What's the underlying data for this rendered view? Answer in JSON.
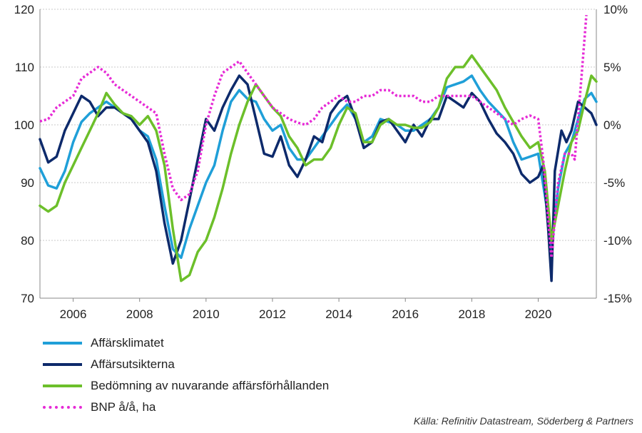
{
  "chart_data": {
    "type": "line",
    "xlim": [
      2005.0,
      2021.75
    ],
    "x_ticks": [
      "2006",
      "2008",
      "2010",
      "2012",
      "2014",
      "2016",
      "2018",
      "2020"
    ],
    "y_left": {
      "ylim": [
        70,
        120
      ],
      "ticks": [
        "70",
        "80",
        "90",
        "100",
        "110",
        "120"
      ]
    },
    "y_right": {
      "ylim": [
        -15,
        10
      ],
      "ticks": [
        "-15%",
        "-10%",
        "-5%",
        "0%",
        "5%",
        "10%"
      ]
    },
    "grid": true,
    "legend_position": "bottom-left",
    "series": [
      {
        "name": "Affärsklimatet",
        "axis": "left",
        "color": "#1f9fd8",
        "points": [
          [
            2005.0,
            92.5
          ],
          [
            2005.25,
            89.5
          ],
          [
            2005.5,
            89
          ],
          [
            2005.75,
            92
          ],
          [
            2006.0,
            97
          ],
          [
            2006.25,
            100.5
          ],
          [
            2006.5,
            102
          ],
          [
            2006.75,
            103
          ],
          [
            2007.0,
            104
          ],
          [
            2007.25,
            103
          ],
          [
            2007.5,
            102
          ],
          [
            2007.75,
            101
          ],
          [
            2008.0,
            99
          ],
          [
            2008.25,
            98
          ],
          [
            2008.5,
            94
          ],
          [
            2008.75,
            86
          ],
          [
            2009.0,
            78.5
          ],
          [
            2009.25,
            77
          ],
          [
            2009.5,
            82
          ],
          [
            2009.75,
            86
          ],
          [
            2010.0,
            90
          ],
          [
            2010.25,
            93
          ],
          [
            2010.5,
            99
          ],
          [
            2010.75,
            104
          ],
          [
            2011.0,
            106
          ],
          [
            2011.25,
            104.5
          ],
          [
            2011.5,
            104
          ],
          [
            2011.75,
            101
          ],
          [
            2012.0,
            99
          ],
          [
            2012.25,
            100
          ],
          [
            2012.5,
            96
          ],
          [
            2012.75,
            94
          ],
          [
            2013.0,
            94
          ],
          [
            2013.25,
            96
          ],
          [
            2013.5,
            98
          ],
          [
            2013.75,
            100
          ],
          [
            2014.0,
            102
          ],
          [
            2014.25,
            103.5
          ],
          [
            2014.5,
            101
          ],
          [
            2014.75,
            97
          ],
          [
            2015.0,
            98
          ],
          [
            2015.25,
            101
          ],
          [
            2015.5,
            100.5
          ],
          [
            2015.75,
            100
          ],
          [
            2016.0,
            99
          ],
          [
            2016.25,
            99
          ],
          [
            2016.5,
            100
          ],
          [
            2016.75,
            101
          ],
          [
            2017.0,
            103
          ],
          [
            2017.25,
            106.5
          ],
          [
            2017.5,
            107
          ],
          [
            2017.75,
            107.5
          ],
          [
            2018.0,
            108.5
          ],
          [
            2018.25,
            106
          ],
          [
            2018.5,
            104
          ],
          [
            2018.75,
            102.5
          ],
          [
            2019.0,
            101
          ],
          [
            2019.25,
            97
          ],
          [
            2019.5,
            94
          ],
          [
            2019.75,
            94.5
          ],
          [
            2020.0,
            95
          ],
          [
            2020.25,
            86
          ],
          [
            2020.4,
            78.5
          ],
          [
            2020.6,
            89
          ],
          [
            2020.8,
            95
          ],
          [
            2021.0,
            97
          ],
          [
            2021.2,
            101
          ],
          [
            2021.4,
            104.5
          ],
          [
            2021.6,
            105.5
          ],
          [
            2021.75,
            104
          ]
        ]
      },
      {
        "name": "Affärsutsikterna",
        "axis": "left",
        "color": "#0d2a6b",
        "points": [
          [
            2005.0,
            97.5
          ],
          [
            2005.25,
            93.5
          ],
          [
            2005.5,
            94.5
          ],
          [
            2005.75,
            99
          ],
          [
            2006.0,
            102
          ],
          [
            2006.25,
            105
          ],
          [
            2006.5,
            104
          ],
          [
            2006.75,
            101.5
          ],
          [
            2007.0,
            103
          ],
          [
            2007.25,
            103
          ],
          [
            2007.5,
            102
          ],
          [
            2007.75,
            101
          ],
          [
            2008.0,
            99
          ],
          [
            2008.25,
            97
          ],
          [
            2008.5,
            92
          ],
          [
            2008.75,
            83
          ],
          [
            2009.0,
            76
          ],
          [
            2009.25,
            80
          ],
          [
            2009.5,
            87
          ],
          [
            2009.75,
            94
          ],
          [
            2010.0,
            101
          ],
          [
            2010.25,
            99
          ],
          [
            2010.5,
            103
          ],
          [
            2010.75,
            106
          ],
          [
            2011.0,
            108.5
          ],
          [
            2011.25,
            107
          ],
          [
            2011.5,
            101
          ],
          [
            2011.75,
            95
          ],
          [
            2012.0,
            94.5
          ],
          [
            2012.25,
            98
          ],
          [
            2012.5,
            93
          ],
          [
            2012.75,
            91
          ],
          [
            2013.0,
            94
          ],
          [
            2013.25,
            98
          ],
          [
            2013.5,
            97
          ],
          [
            2013.75,
            102
          ],
          [
            2014.0,
            104
          ],
          [
            2014.25,
            105
          ],
          [
            2014.5,
            101
          ],
          [
            2014.75,
            96
          ],
          [
            2015.0,
            97
          ],
          [
            2015.25,
            100.5
          ],
          [
            2015.5,
            101
          ],
          [
            2015.75,
            99
          ],
          [
            2016.0,
            97
          ],
          [
            2016.25,
            100
          ],
          [
            2016.5,
            98
          ],
          [
            2016.75,
            101
          ],
          [
            2017.0,
            101
          ],
          [
            2017.25,
            105
          ],
          [
            2017.5,
            104
          ],
          [
            2017.75,
            103
          ],
          [
            2018.0,
            105.5
          ],
          [
            2018.25,
            104
          ],
          [
            2018.5,
            101
          ],
          [
            2018.75,
            98.5
          ],
          [
            2019.0,
            97
          ],
          [
            2019.25,
            95
          ],
          [
            2019.5,
            91.5
          ],
          [
            2019.75,
            90
          ],
          [
            2020.0,
            91
          ],
          [
            2020.15,
            93
          ],
          [
            2020.3,
            82
          ],
          [
            2020.4,
            73
          ],
          [
            2020.5,
            92
          ],
          [
            2020.7,
            99
          ],
          [
            2020.85,
            97
          ],
          [
            2021.0,
            99
          ],
          [
            2021.2,
            104
          ],
          [
            2021.4,
            103
          ],
          [
            2021.6,
            102
          ],
          [
            2021.75,
            100
          ]
        ]
      },
      {
        "name": "Bedömning av nuvarande affärsförhållanden",
        "axis": "left",
        "color": "#6cbf2a",
        "points": [
          [
            2005.0,
            86
          ],
          [
            2005.25,
            85
          ],
          [
            2005.5,
            86
          ],
          [
            2005.75,
            90
          ],
          [
            2006.0,
            93
          ],
          [
            2006.25,
            96
          ],
          [
            2006.5,
            99
          ],
          [
            2006.75,
            102
          ],
          [
            2007.0,
            105.5
          ],
          [
            2007.25,
            103.5
          ],
          [
            2007.5,
            102
          ],
          [
            2007.75,
            101.5
          ],
          [
            2008.0,
            100
          ],
          [
            2008.25,
            101.5
          ],
          [
            2008.5,
            99
          ],
          [
            2008.75,
            93
          ],
          [
            2009.0,
            82
          ],
          [
            2009.25,
            73
          ],
          [
            2009.5,
            74
          ],
          [
            2009.75,
            78
          ],
          [
            2010.0,
            80
          ],
          [
            2010.25,
            84
          ],
          [
            2010.5,
            89
          ],
          [
            2010.75,
            95
          ],
          [
            2011.0,
            100
          ],
          [
            2011.25,
            104
          ],
          [
            2011.5,
            107
          ],
          [
            2011.75,
            105
          ],
          [
            2012.0,
            103
          ],
          [
            2012.25,
            101.5
          ],
          [
            2012.5,
            98
          ],
          [
            2012.75,
            96
          ],
          [
            2013.0,
            93
          ],
          [
            2013.25,
            94
          ],
          [
            2013.5,
            94
          ],
          [
            2013.75,
            96
          ],
          [
            2014.0,
            100
          ],
          [
            2014.25,
            103
          ],
          [
            2014.5,
            102
          ],
          [
            2014.75,
            97
          ],
          [
            2015.0,
            97
          ],
          [
            2015.25,
            100
          ],
          [
            2015.5,
            101
          ],
          [
            2015.75,
            100
          ],
          [
            2016.0,
            100
          ],
          [
            2016.25,
            99.5
          ],
          [
            2016.5,
            99.5
          ],
          [
            2016.75,
            100.5
          ],
          [
            2017.0,
            103
          ],
          [
            2017.25,
            108
          ],
          [
            2017.5,
            110
          ],
          [
            2017.75,
            110
          ],
          [
            2018.0,
            112
          ],
          [
            2018.25,
            110
          ],
          [
            2018.5,
            108
          ],
          [
            2018.75,
            106
          ],
          [
            2019.0,
            103
          ],
          [
            2019.25,
            100.5
          ],
          [
            2019.5,
            98
          ],
          [
            2019.75,
            96
          ],
          [
            2020.0,
            97
          ],
          [
            2020.2,
            92
          ],
          [
            2020.4,
            80
          ],
          [
            2020.6,
            86
          ],
          [
            2020.8,
            92
          ],
          [
            2021.0,
            97
          ],
          [
            2021.2,
            99
          ],
          [
            2021.4,
            104
          ],
          [
            2021.6,
            108.5
          ],
          [
            2021.75,
            107.5
          ]
        ]
      },
      {
        "name": "BNP å/å, ha",
        "axis": "right",
        "color": "#e62ad6",
        "points": [
          [
            2005.0,
            0.3
          ],
          [
            2005.25,
            0.5
          ],
          [
            2005.5,
            1.5
          ],
          [
            2005.75,
            2
          ],
          [
            2006.0,
            2.5
          ],
          [
            2006.25,
            4
          ],
          [
            2006.5,
            4.5
          ],
          [
            2006.75,
            5
          ],
          [
            2007.0,
            4.5
          ],
          [
            2007.25,
            3.5
          ],
          [
            2007.5,
            3
          ],
          [
            2007.75,
            2.5
          ],
          [
            2008.0,
            2
          ],
          [
            2008.25,
            1.5
          ],
          [
            2008.5,
            1
          ],
          [
            2008.75,
            -2.5
          ],
          [
            2009.0,
            -5.5
          ],
          [
            2009.25,
            -6.5
          ],
          [
            2009.5,
            -6
          ],
          [
            2009.75,
            -4
          ],
          [
            2010.0,
            0
          ],
          [
            2010.25,
            2.5
          ],
          [
            2010.5,
            4.5
          ],
          [
            2010.75,
            5
          ],
          [
            2011.0,
            5.5
          ],
          [
            2011.25,
            4.5
          ],
          [
            2011.5,
            3.5
          ],
          [
            2011.75,
            2.5
          ],
          [
            2012.0,
            1.5
          ],
          [
            2012.25,
            1
          ],
          [
            2012.5,
            0.5
          ],
          [
            2012.75,
            0.2
          ],
          [
            2013.0,
            0
          ],
          [
            2013.25,
            0.5
          ],
          [
            2013.5,
            1.5
          ],
          [
            2013.75,
            2
          ],
          [
            2014.0,
            2.5
          ],
          [
            2014.25,
            2
          ],
          [
            2014.5,
            2
          ],
          [
            2014.75,
            2.5
          ],
          [
            2015.0,
            2.5
          ],
          [
            2015.25,
            3
          ],
          [
            2015.5,
            3
          ],
          [
            2015.75,
            2.5
          ],
          [
            2016.0,
            2.5
          ],
          [
            2016.25,
            2.5
          ],
          [
            2016.5,
            2
          ],
          [
            2016.75,
            2
          ],
          [
            2017.0,
            2.5
          ],
          [
            2017.25,
            2.5
          ],
          [
            2017.5,
            2.5
          ],
          [
            2017.75,
            2.5
          ],
          [
            2018.0,
            2.5
          ],
          [
            2018.25,
            2
          ],
          [
            2018.5,
            1.5
          ],
          [
            2018.75,
            1
          ],
          [
            2019.0,
            0.5
          ],
          [
            2019.25,
            0
          ],
          [
            2019.5,
            0.5
          ],
          [
            2019.75,
            0.8
          ],
          [
            2020.0,
            0.5
          ],
          [
            2020.15,
            -3
          ],
          [
            2020.4,
            -11.5
          ],
          [
            2020.6,
            -5
          ],
          [
            2020.8,
            -2.5
          ],
          [
            2021.0,
            -2.5
          ],
          [
            2021.1,
            -3
          ],
          [
            2021.3,
            4
          ],
          [
            2021.45,
            9.5
          ]
        ]
      }
    ]
  },
  "source_text": "Källa: Refinitiv Datastream, Söderberg & Partners"
}
